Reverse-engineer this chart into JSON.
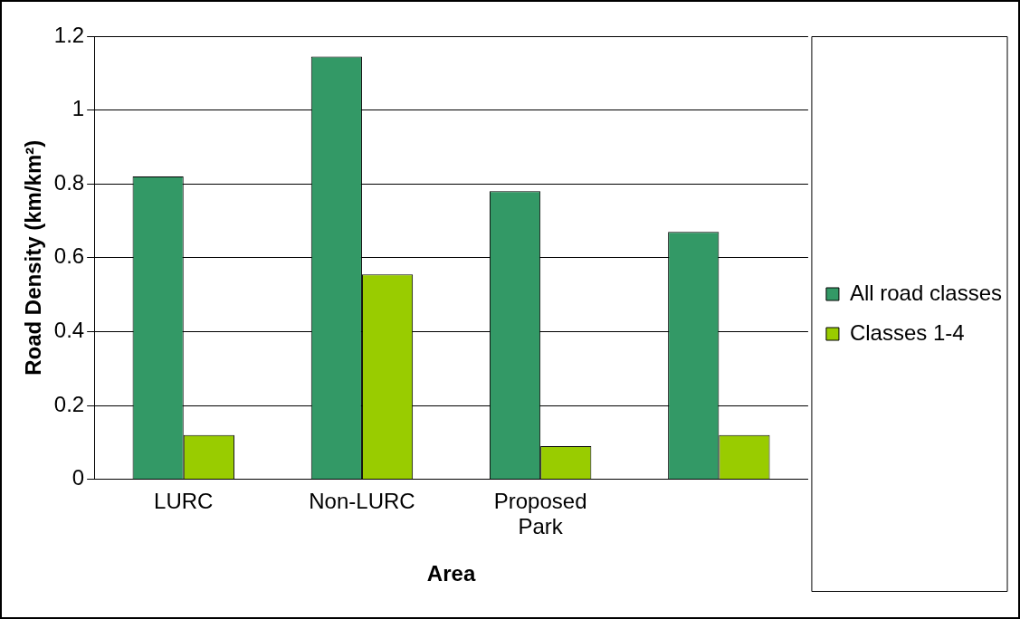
{
  "chart_data": {
    "type": "bar",
    "xlabel": "Area",
    "ylabel": "Road Density (km/km²)",
    "categories": [
      "LURC",
      "Non-LURC",
      "Proposed Park",
      null
    ],
    "series": [
      {
        "name": "All road classes",
        "color": "#339966",
        "values": [
          0.82,
          1.145,
          0.78,
          0.67
        ]
      },
      {
        "name": "Classes 1-4",
        "color": "#99cc00",
        "values": [
          0.12,
          0.555,
          0.09,
          0.12
        ]
      }
    ],
    "ylim": [
      0,
      1.2
    ],
    "yticks": [
      0,
      0.2,
      0.4,
      0.6,
      0.8,
      1,
      1.2
    ],
    "grid": "y",
    "legend": "right"
  }
}
